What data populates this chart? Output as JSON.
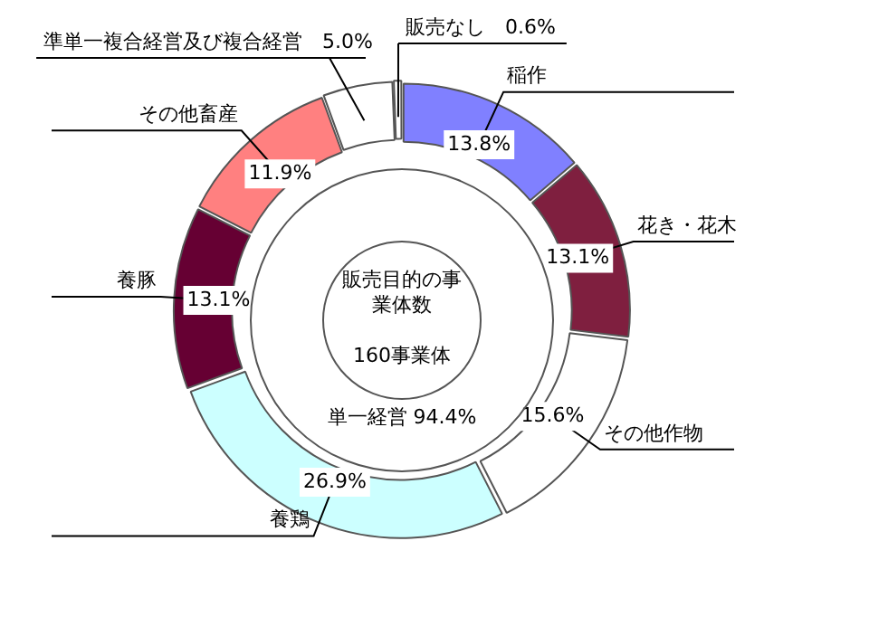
{
  "chart_data": {
    "type": "donut",
    "title": "販売目的の事業体数",
    "subtitle": "160事業体",
    "categories": [
      "稲作",
      "花き・花木",
      "その他作物",
      "養鶏",
      "養豚",
      "その他畜産",
      "準単一複合経営及び複合経営",
      "販売なし"
    ],
    "values": [
      13.8,
      13.1,
      15.6,
      26.9,
      13.1,
      11.9,
      5.0,
      0.6
    ],
    "colors": [
      "#8080ff",
      "#7f1f3f",
      "#ffffff",
      "#ccffff",
      "#660033",
      "#ff8080",
      "#ffffff",
      "#ffffff"
    ],
    "value_labels": [
      "13.8%",
      "13.1%",
      "15.6%",
      "26.9%",
      "13.1%",
      "11.9%",
      "5.0%",
      "0.6%"
    ],
    "annotations": [
      "単一経営 94.4%"
    ],
    "legend": false
  }
}
